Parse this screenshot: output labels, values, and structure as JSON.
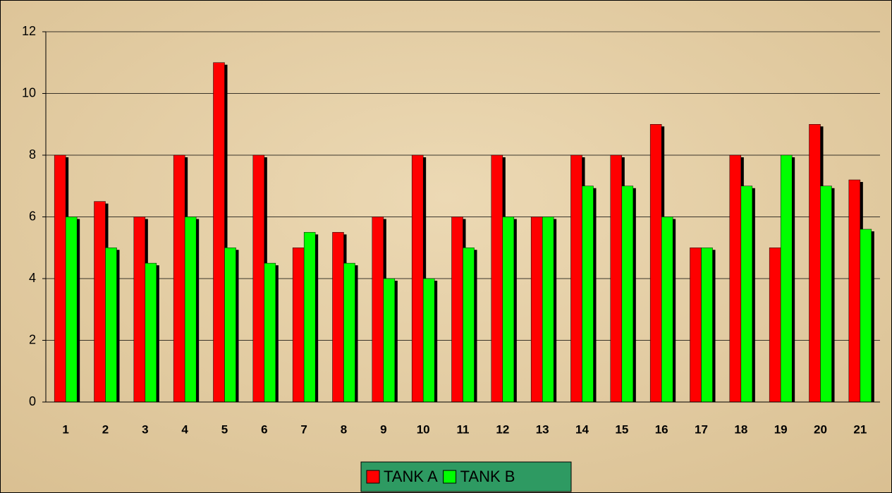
{
  "chart_data": {
    "type": "bar",
    "categories": [
      "1",
      "2",
      "3",
      "4",
      "5",
      "6",
      "7",
      "8",
      "9",
      "10",
      "11",
      "12",
      "13",
      "14",
      "15",
      "16",
      "17",
      "18",
      "19",
      "20",
      "21"
    ],
    "series": [
      {
        "name": "TANK A",
        "color": "#ff0000",
        "values": [
          8,
          6.5,
          6,
          8,
          11,
          8,
          5,
          5.5,
          6,
          8,
          6,
          8,
          6,
          8,
          8,
          9,
          5,
          8,
          5,
          9,
          7.2
        ]
      },
      {
        "name": "TANK B",
        "color": "#00ff00",
        "values": [
          6,
          5,
          4.5,
          6,
          5,
          4.5,
          5.5,
          4.5,
          4,
          4,
          5,
          6,
          6,
          7,
          7,
          6,
          5,
          7,
          8,
          7,
          5.6
        ]
      }
    ],
    "ylim": [
      0,
      12
    ],
    "yticks": [
      0,
      2,
      4,
      6,
      8,
      10,
      12
    ],
    "grid": true,
    "legend": "bottom"
  }
}
